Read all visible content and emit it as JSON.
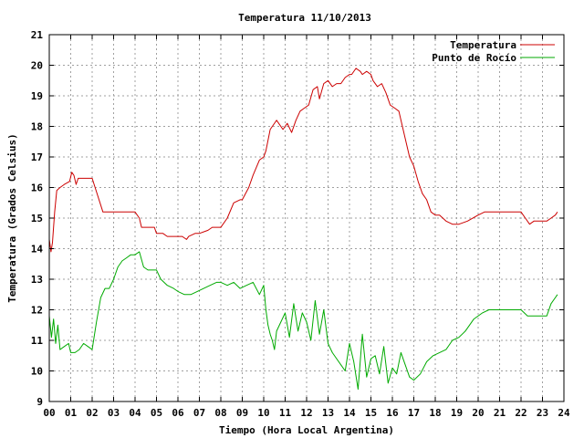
{
  "chart_data": {
    "type": "line",
    "title": "Temperatura 11/10/2013",
    "xlabel": "Tiempo (Hora Local Argentina)",
    "ylabel": "Temperatura (Grados Celsius)",
    "xlim": [
      0,
      24
    ],
    "ylim": [
      9,
      21
    ],
    "grid": true,
    "legend_position": "top-right",
    "x_ticks": [
      "00",
      "01",
      "02",
      "03",
      "04",
      "05",
      "06",
      "07",
      "08",
      "09",
      "10",
      "11",
      "12",
      "13",
      "14",
      "15",
      "16",
      "17",
      "18",
      "19",
      "20",
      "21",
      "22",
      "23",
      "24"
    ],
    "y_ticks": [
      "9",
      "10",
      "11",
      "12",
      "13",
      "14",
      "15",
      "16",
      "17",
      "18",
      "19",
      "20",
      "21"
    ],
    "series": [
      {
        "name": "Temperatura",
        "color": "#cc0000",
        "x": [
          0.0,
          0.08,
          0.15,
          0.25,
          0.35,
          0.5,
          0.7,
          0.95,
          1.05,
          1.15,
          1.25,
          1.35,
          1.45,
          1.8,
          2.0,
          2.5,
          2.9,
          3.3,
          4.0,
          4.2,
          4.3,
          4.5,
          4.9,
          5.0,
          5.3,
          5.5,
          5.8,
          6.0,
          6.2,
          6.4,
          6.5,
          6.8,
          7.0,
          7.4,
          7.6,
          7.8,
          8.0,
          8.3,
          8.6,
          8.9,
          9.0,
          9.3,
          9.5,
          9.8,
          10.0,
          10.1,
          10.3,
          10.5,
          10.6,
          10.9,
          11.1,
          11.3,
          11.5,
          11.7,
          11.9,
          12.1,
          12.3,
          12.5,
          12.6,
          12.8,
          13.0,
          13.2,
          13.4,
          13.6,
          13.8,
          14.0,
          14.1,
          14.3,
          14.5,
          14.6,
          14.8,
          15.0,
          15.1,
          15.3,
          15.5,
          15.7,
          15.9,
          16.1,
          16.3,
          16.6,
          16.8,
          17.0,
          17.2,
          17.4,
          17.6,
          17.8,
          18.0,
          18.2,
          18.5,
          18.8,
          19.1,
          19.5,
          20.0,
          20.3,
          20.7,
          21.0,
          21.5,
          22.0,
          22.2,
          22.4,
          22.6,
          22.9,
          23.2,
          23.4,
          23.6,
          23.7
        ],
        "y": [
          14.3,
          13.9,
          14.2,
          15.2,
          15.9,
          16.0,
          16.1,
          16.2,
          16.5,
          16.4,
          16.1,
          16.3,
          16.3,
          16.3,
          16.3,
          15.2,
          15.2,
          15.2,
          15.2,
          15.0,
          14.7,
          14.7,
          14.7,
          14.5,
          14.5,
          14.4,
          14.4,
          14.4,
          14.4,
          14.3,
          14.4,
          14.5,
          14.5,
          14.6,
          14.7,
          14.7,
          14.7,
          15.0,
          15.5,
          15.6,
          15.6,
          16.0,
          16.4,
          16.9,
          17.0,
          17.2,
          17.9,
          18.1,
          18.2,
          17.9,
          18.1,
          17.8,
          18.2,
          18.5,
          18.6,
          18.7,
          19.2,
          19.3,
          18.9,
          19.4,
          19.5,
          19.3,
          19.4,
          19.4,
          19.6,
          19.7,
          19.7,
          19.9,
          19.8,
          19.7,
          19.8,
          19.7,
          19.5,
          19.3,
          19.4,
          19.1,
          18.7,
          18.6,
          18.5,
          17.6,
          17.0,
          16.7,
          16.2,
          15.8,
          15.6,
          15.2,
          15.1,
          15.1,
          14.9,
          14.8,
          14.8,
          14.9,
          15.1,
          15.2,
          15.2,
          15.2,
          15.2,
          15.2,
          15.0,
          14.8,
          14.9,
          14.9,
          14.9,
          15.0,
          15.1,
          15.2
        ]
      },
      {
        "name": "Punto de Rocío",
        "color": "#00aa00",
        "x": [
          0.0,
          0.1,
          0.2,
          0.3,
          0.4,
          0.5,
          0.7,
          0.9,
          1.0,
          1.2,
          1.4,
          1.6,
          1.8,
          2.0,
          2.2,
          2.4,
          2.6,
          2.8,
          3.0,
          3.2,
          3.4,
          3.6,
          3.8,
          4.0,
          4.2,
          4.4,
          4.6,
          4.8,
          5.0,
          5.2,
          5.5,
          5.8,
          6.0,
          6.3,
          6.6,
          6.9,
          7.2,
          7.5,
          7.8,
          8.0,
          8.3,
          8.6,
          8.9,
          9.2,
          9.5,
          9.8,
          10.0,
          10.1,
          10.2,
          10.3,
          10.4,
          10.5,
          10.6,
          10.8,
          11.0,
          11.2,
          11.4,
          11.6,
          11.8,
          12.0,
          12.2,
          12.4,
          12.6,
          12.8,
          13.0,
          13.2,
          13.4,
          13.6,
          13.8,
          14.0,
          14.2,
          14.4,
          14.6,
          14.8,
          15.0,
          15.2,
          15.4,
          15.6,
          15.8,
          16.0,
          16.2,
          16.4,
          16.6,
          16.8,
          17.0,
          17.3,
          17.6,
          17.9,
          18.2,
          18.5,
          18.8,
          19.1,
          19.4,
          19.8,
          20.2,
          20.5,
          20.8,
          21.1,
          21.4,
          21.7,
          22.0,
          22.3,
          22.6,
          22.9,
          23.2,
          23.4,
          23.6,
          23.7
        ],
        "y": [
          11.8,
          11.1,
          11.7,
          10.9,
          11.5,
          10.7,
          10.8,
          10.9,
          10.6,
          10.6,
          10.7,
          10.9,
          10.8,
          10.7,
          11.6,
          12.4,
          12.7,
          12.7,
          13.0,
          13.4,
          13.6,
          13.7,
          13.8,
          13.8,
          13.9,
          13.4,
          13.3,
          13.3,
          13.3,
          13.0,
          12.8,
          12.7,
          12.6,
          12.5,
          12.5,
          12.6,
          12.7,
          12.8,
          12.9,
          12.9,
          12.8,
          12.9,
          12.7,
          12.8,
          12.9,
          12.5,
          12.8,
          12.0,
          11.5,
          11.2,
          11.0,
          10.7,
          11.3,
          11.6,
          11.9,
          11.1,
          12.2,
          11.3,
          11.9,
          11.6,
          11.0,
          12.3,
          11.2,
          12.0,
          10.9,
          10.6,
          10.4,
          10.2,
          10.0,
          10.9,
          10.3,
          9.4,
          11.2,
          9.8,
          10.4,
          10.5,
          9.9,
          10.8,
          9.6,
          10.1,
          9.9,
          10.6,
          10.2,
          9.8,
          9.7,
          9.9,
          10.3,
          10.5,
          10.6,
          10.7,
          11.0,
          11.1,
          11.3,
          11.7,
          11.9,
          12.0,
          12.0,
          12.0,
          12.0,
          12.0,
          12.0,
          11.8,
          11.8,
          11.8,
          11.8,
          12.2,
          12.4,
          12.5
        ]
      }
    ]
  }
}
